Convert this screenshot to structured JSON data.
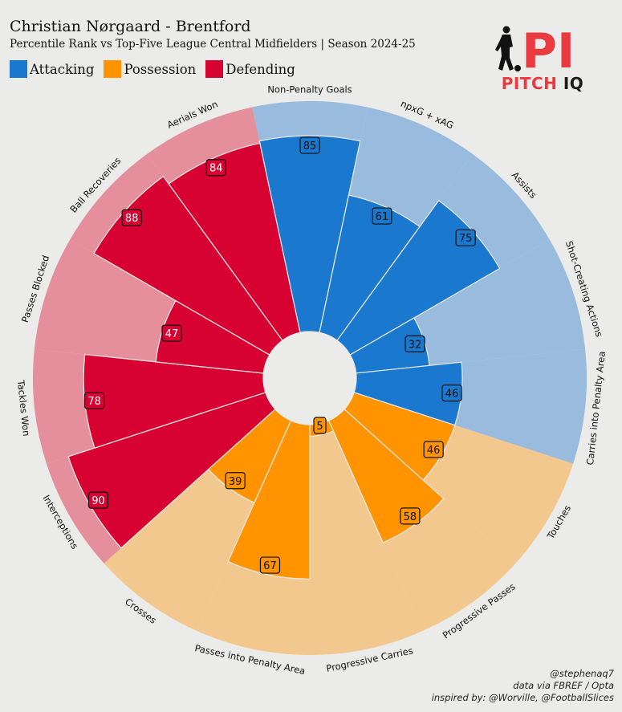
{
  "header": {
    "title": "Christian Nørgaard - Brentford",
    "subtitle": "Percentile Rank vs Top-Five League Central Midfielders | Season 2024-25"
  },
  "legend": [
    {
      "label": "Attacking",
      "color": "#1a78cf"
    },
    {
      "label": "Possession",
      "color": "#ff9300"
    },
    {
      "label": "Defending",
      "color": "#d70232"
    }
  ],
  "logo": {
    "mark": "PI",
    "word1": "PITCH",
    "word2": "IQ",
    "icon": "footballer-silhouette-icon"
  },
  "footer": {
    "line1": "@stephenaq7",
    "line2": "data via FBREF / Opta",
    "line3": "inspired by: @Worville, @FootballSlices"
  },
  "chart_data": {
    "type": "polar-bar",
    "title": "Christian Nørgaard - Brentford",
    "subtitle": "Percentile Rank vs Top-Five League Central Midfielders | Season 2024-25",
    "rlim": [
      0,
      100
    ],
    "legend_position": "top-left",
    "group_colors": {
      "Attacking": {
        "bar": "#1a78cf",
        "bg": "#98bbde"
      },
      "Possession": {
        "bar": "#ff9300",
        "bg": "#f2c88e"
      },
      "Defending": {
        "bar": "#d70232",
        "bg": "#e48f9b"
      }
    },
    "categories": [
      {
        "label": "Non-Penalty Goals",
        "value": 85,
        "group": "Attacking"
      },
      {
        "label": "npxG + xAG",
        "value": 61,
        "group": "Attacking"
      },
      {
        "label": "Assists",
        "value": 75,
        "group": "Attacking"
      },
      {
        "label": "Shot-Creating Actions",
        "value": 32,
        "group": "Attacking"
      },
      {
        "label": "Carries into Penalty Area",
        "value": 46,
        "group": "Attacking"
      },
      {
        "label": "Touches",
        "value": 46,
        "group": "Possession"
      },
      {
        "label": "Progressive Passes",
        "value": 58,
        "group": "Possession"
      },
      {
        "label": "Progressive Carries",
        "value": 5,
        "group": "Possession"
      },
      {
        "label": "Passes into Penalty Area",
        "value": 67,
        "group": "Possession"
      },
      {
        "label": "Crosses",
        "value": 39,
        "group": "Possession"
      },
      {
        "label": "Interceptions",
        "value": 90,
        "group": "Defending"
      },
      {
        "label": "Tackles Won",
        "value": 78,
        "group": "Defending"
      },
      {
        "label": "Passes Blocked",
        "value": 47,
        "group": "Defending"
      },
      {
        "label": "Ball Recoveries",
        "value": 88,
        "group": "Defending"
      },
      {
        "label": "Aerials Won",
        "value": 84,
        "group": "Defending"
      }
    ]
  }
}
